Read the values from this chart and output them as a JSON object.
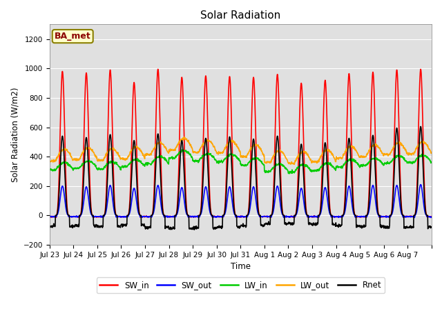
{
  "title": "Solar Radiation",
  "ylabel": "Solar Radiation (W/m2)",
  "xlabel": "Time",
  "annotation": "BA_met",
  "ylim": [
    -200,
    1300
  ],
  "yticks": [
    -200,
    0,
    200,
    400,
    600,
    800,
    1000,
    1200
  ],
  "x_tick_labels": [
    "Jul 23",
    "Jul 24",
    "Jul 25",
    "Jul 26",
    "Jul 27",
    "Jul 28",
    "Jul 29",
    "Jul 30",
    "Jul 31",
    "Aug 1",
    "Aug 2",
    "Aug 3",
    "Aug 4",
    "Aug 5",
    "Aug 6",
    "Aug 7"
  ],
  "n_days": 16,
  "dt_hours": 0.25,
  "background_color": "#e0e0e0",
  "series": {
    "SW_in": {
      "color": "#ff0000",
      "lw": 1.2
    },
    "SW_out": {
      "color": "#0000ff",
      "lw": 1.2
    },
    "LW_in": {
      "color": "#00cc00",
      "lw": 1.2
    },
    "LW_out": {
      "color": "#ffa500",
      "lw": 1.2
    },
    "Rnet": {
      "color": "#000000",
      "lw": 1.2
    }
  },
  "SW_in_peaks": [
    980,
    970,
    990,
    905,
    995,
    940,
    950,
    945,
    940,
    960,
    900,
    920,
    965,
    975,
    990,
    995
  ],
  "SW_out_peaks": [
    200,
    195,
    205,
    185,
    205,
    190,
    195,
    195,
    195,
    200,
    185,
    190,
    200,
    205,
    205,
    210
  ],
  "LW_in_base": [
    310,
    320,
    315,
    330,
    350,
    390,
    370,
    365,
    340,
    300,
    295,
    305,
    330,
    340,
    355,
    360
  ],
  "LW_out_base": [
    370,
    380,
    375,
    385,
    415,
    445,
    430,
    425,
    400,
    360,
    355,
    365,
    390,
    400,
    415,
    420
  ],
  "Rnet_peaks": [
    540,
    530,
    550,
    510,
    555,
    510,
    525,
    535,
    520,
    540,
    485,
    495,
    525,
    545,
    595,
    605
  ],
  "night_rnet": [
    -75,
    -70,
    -75,
    -65,
    -80,
    -90,
    -85,
    -80,
    -70,
    -55,
    -55,
    -60,
    -70,
    -75,
    -80,
    -80
  ]
}
